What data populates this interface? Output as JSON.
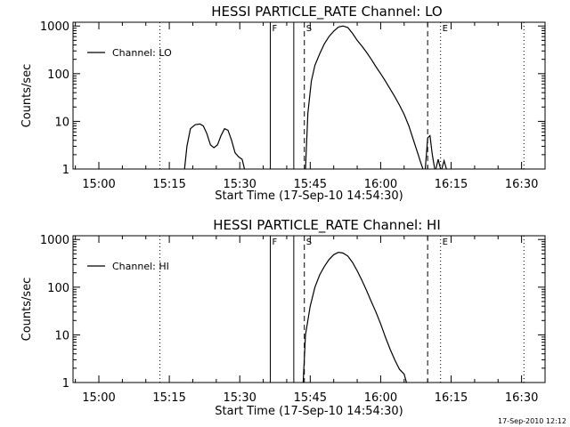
{
  "footer": {
    "timestamp": "17-Sep-2010 12:12"
  },
  "chart_data": [
    {
      "type": "line",
      "title": "HESSI PARTICLE_RATE Channel: LO",
      "xlabel": "Start Time (17-Sep-10 14:54:30)",
      "ylabel": "Counts/sec",
      "yscale": "log",
      "ylim": [
        1,
        1200
      ],
      "xlim": [
        "14:54:30",
        "16:35"
      ],
      "x_ticks": [
        "15:00",
        "15:15",
        "15:30",
        "15:45",
        "16:00",
        "16:15",
        "16:30"
      ],
      "y_ticks": [
        "1",
        "10",
        "100",
        "1000"
      ],
      "legend": "top-left",
      "series": [
        {
          "name": "Channel: LO",
          "segments": [
            {
              "x": [
                "15:18:15",
                "15:18:45",
                "15:19:30",
                "15:20:30",
                "15:21:30",
                "15:22:15",
                "15:23:00",
                "15:23:45",
                "15:24:30",
                "15:25:15",
                "15:26:00",
                "15:26:45",
                "15:27:30",
                "15:28:15",
                "15:29:00",
                "15:29:45",
                "15:30:30",
                "15:31:00"
              ],
              "y": [
                1,
                3,
                7,
                8.5,
                8.8,
                8,
                5.5,
                3.2,
                2.8,
                3.2,
                5,
                7,
                6.5,
                4,
                2.2,
                1.8,
                1.6,
                1
              ]
            },
            {
              "x": [
                "15:44:00",
                "15:44:30",
                "15:45:15",
                "15:46:00",
                "15:47:00",
                "15:48:00",
                "15:49:00",
                "15:50:00",
                "15:51:00",
                "15:52:00",
                "15:53:00",
                "15:54:00",
                "15:55:00",
                "15:56:00",
                "15:57:00",
                "15:58:00",
                "15:59:00",
                "16:00:00",
                "16:01:00",
                "16:02:00",
                "16:03:00",
                "16:04:00",
                "16:05:00",
                "16:06:00",
                "16:07:00",
                "16:08:00",
                "16:08:30",
                "16:09:00"
              ],
              "y": [
                1,
                15,
                70,
                150,
                260,
                420,
                600,
                780,
                950,
                1000,
                930,
                700,
                500,
                380,
                280,
                200,
                140,
                100,
                70,
                48,
                33,
                22,
                14,
                8,
                4,
                2,
                1.4,
                1
              ]
            },
            {
              "x": [
                "16:09:30",
                "16:10:00",
                "16:10:30",
                "16:11:00",
                "16:11:30"
              ],
              "y": [
                1,
                4.5,
                5,
                2,
                1
              ]
            },
            {
              "x": [
                "16:11:45",
                "16:12:15",
                "16:12:45"
              ],
              "y": [
                1,
                1.6,
                1
              ]
            },
            {
              "x": [
                "16:13:00",
                "16:13:30",
                "16:14:00"
              ],
              "y": [
                1,
                1.5,
                1
              ]
            }
          ]
        }
      ],
      "markers": [
        {
          "x": "15:13:00",
          "style": "dotted",
          "label": ""
        },
        {
          "x": "15:36:30",
          "style": "solid",
          "label": "F"
        },
        {
          "x": "15:41:30",
          "style": "solid",
          "label": ""
        },
        {
          "x": "15:43:45",
          "style": "dashed",
          "label": "S"
        },
        {
          "x": "16:10:00",
          "style": "dashed",
          "label": ""
        },
        {
          "x": "16:12:45",
          "style": "dotted",
          "label": "E"
        },
        {
          "x": "16:30:30",
          "style": "dotted",
          "label": ""
        }
      ]
    },
    {
      "type": "line",
      "title": "HESSI PARTICLE_RATE Channel: HI",
      "xlabel": "Start Time (17-Sep-10 14:54:30)",
      "ylabel": "Counts/sec",
      "yscale": "log",
      "ylim": [
        1,
        1200
      ],
      "xlim": [
        "14:54:30",
        "16:35"
      ],
      "x_ticks": [
        "15:00",
        "15:15",
        "15:30",
        "15:45",
        "16:00",
        "16:15",
        "16:30"
      ],
      "y_ticks": [
        "1",
        "10",
        "100",
        "1000"
      ],
      "legend": "top-left",
      "series": [
        {
          "name": "Channel: HI",
          "segments": [
            {
              "x": [
                "15:43:30",
                "15:44:00",
                "15:45:00",
                "15:46:00",
                "15:47:00",
                "15:48:00",
                "15:49:00",
                "15:50:00",
                "15:51:00",
                "15:52:00",
                "15:53:00",
                "15:54:00",
                "15:55:00",
                "15:56:00",
                "15:57:00",
                "15:58:00",
                "15:59:00",
                "16:00:00",
                "16:01:00",
                "16:02:00",
                "16:03:00",
                "16:04:00",
                "16:05:00",
                "16:05:30"
              ],
              "y": [
                1,
                10,
                40,
                100,
                180,
                270,
                380,
                480,
                540,
                520,
                450,
                330,
                220,
                140,
                85,
                50,
                30,
                17,
                9,
                5,
                3,
                1.9,
                1.5,
                1
              ]
            }
          ]
        }
      ],
      "markers": [
        {
          "x": "15:13:00",
          "style": "dotted",
          "label": ""
        },
        {
          "x": "15:36:30",
          "style": "solid",
          "label": "F"
        },
        {
          "x": "15:41:30",
          "style": "solid",
          "label": ""
        },
        {
          "x": "15:43:45",
          "style": "dashed",
          "label": "S"
        },
        {
          "x": "16:10:00",
          "style": "dashed",
          "label": ""
        },
        {
          "x": "16:12:45",
          "style": "dotted",
          "label": "E"
        },
        {
          "x": "16:30:30",
          "style": "dotted",
          "label": ""
        }
      ]
    }
  ]
}
